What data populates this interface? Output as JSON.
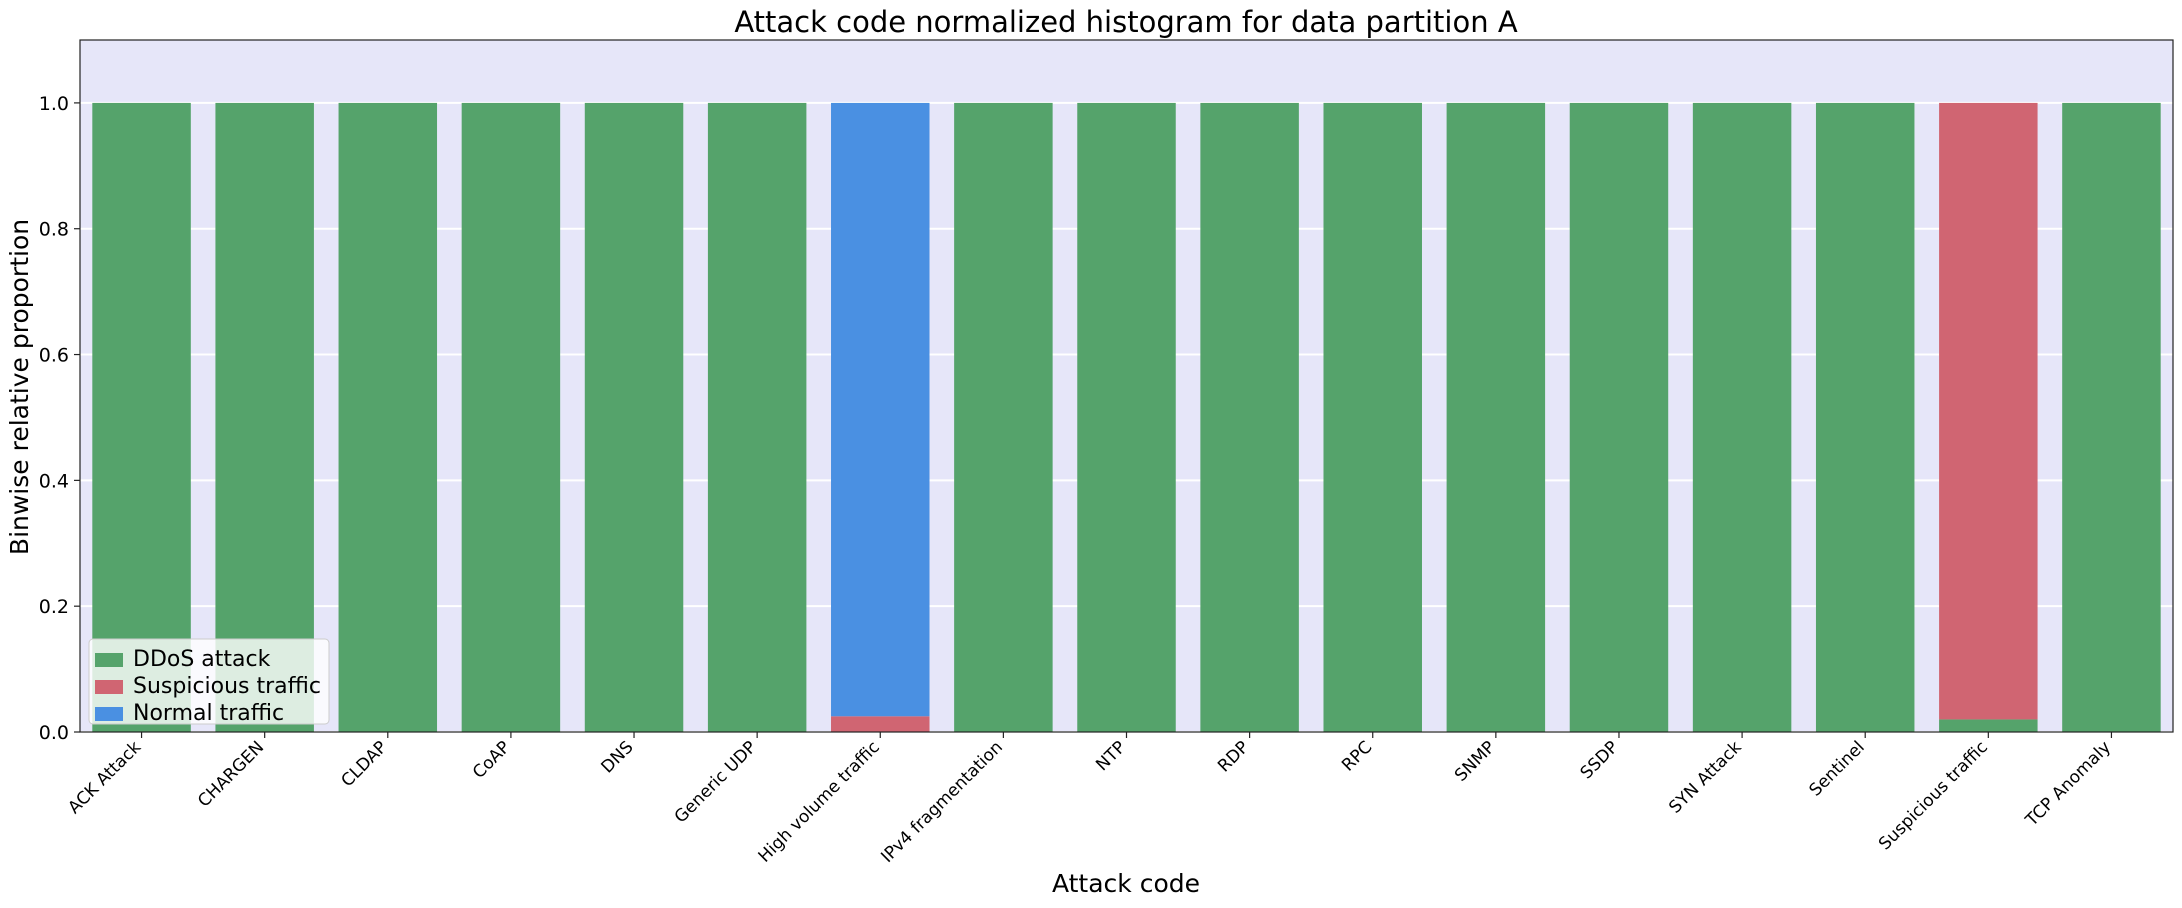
{
  "chart_data": {
    "type": "bar",
    "stacked": true,
    "title": "Attack code normalized histogram for data partition A",
    "xlabel": "Attack code",
    "ylabel": "Binwise relative proportion",
    "ylim": [
      0,
      1.1
    ],
    "yticks": [
      "0.0",
      "0.2",
      "0.4",
      "0.6",
      "0.8",
      "1.0"
    ],
    "grid": true,
    "legend_position": "lower-left",
    "categories": [
      "ACK Attack",
      "CHARGEN",
      "CLDAP",
      "CoAP",
      "DNS",
      "Generic UDP",
      "High volume traffic",
      "IPv4 fragmentation",
      "NTP",
      "RDP",
      "RPC",
      "SNMP",
      "SSDP",
      "SYN Attack",
      "Sentinel",
      "Suspicious traffic",
      "TCP Anomaly"
    ],
    "series": [
      {
        "name": "DDoS attack",
        "color": "#55a36b",
        "values": [
          1,
          1,
          1,
          1,
          1,
          1,
          0,
          1,
          1,
          1,
          1,
          1,
          1,
          1,
          1,
          0.02,
          1
        ]
      },
      {
        "name": "Suspicious traffic",
        "color": "#d06572",
        "values": [
          0,
          0,
          0,
          0,
          0,
          0,
          0.025,
          0,
          0,
          0,
          0,
          0,
          0,
          0,
          0,
          0.98,
          0
        ]
      },
      {
        "name": "Normal traffic",
        "color": "#4a90e2",
        "values": [
          0,
          0,
          0,
          0,
          0,
          0,
          0.975,
          0,
          0,
          0,
          0,
          0,
          0,
          0,
          0,
          0,
          0
        ]
      }
    ],
    "plot_background": "#e6e6f9"
  }
}
